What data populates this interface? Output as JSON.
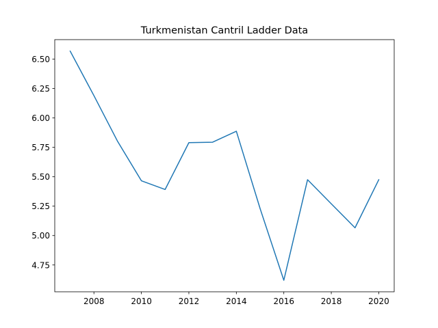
{
  "chart_data": {
    "type": "line",
    "title": "Turkmenistan Cantril Ladder Data",
    "xlabel": "",
    "ylabel": "",
    "x": [
      2007,
      2008,
      2009,
      2010,
      2011,
      2012,
      2013,
      2014,
      2015,
      2016,
      2017,
      2018,
      2019,
      2020
    ],
    "series": [
      {
        "values": [
          6.568,
          6.19,
          5.8,
          5.466,
          5.392,
          5.79,
          5.794,
          5.887,
          5.23,
          4.62,
          5.475,
          5.27,
          5.066,
          5.475
        ],
        "color": "#1f77b4"
      }
    ],
    "xlim": [
      2006.35,
      2020.65
    ],
    "ylim": [
      4.522,
      6.666
    ],
    "xticks": [
      2008,
      2010,
      2012,
      2014,
      2016,
      2018,
      2020
    ],
    "yticks": [
      4.75,
      5.0,
      5.25,
      5.5,
      5.75,
      6.0,
      6.25,
      6.5
    ],
    "ytick_labels": [
      "4.75",
      "5.00",
      "5.25",
      "5.50",
      "5.75",
      "6.00",
      "6.25",
      "6.50"
    ],
    "grid": false,
    "legend": "none"
  }
}
